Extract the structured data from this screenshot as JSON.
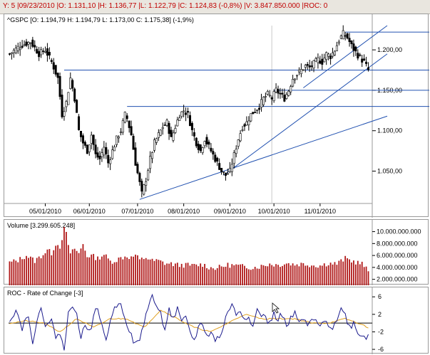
{
  "header": {
    "info_line": "Y: 5 |09/23/2010 |O: 1.131,10 |H: 1.136,77 |L: 1.122,79 |C: 1.124,83 (-0,8%) |V: 3.847.850.000 |ROC: 0"
  },
  "chart_data": [
    {
      "type": "candlestick",
      "name": "price",
      "title": "^GSPC [O: 1.194,79  H: 1.194,79  L: 1.173,00  C: 1.175,38] (-1,9%)",
      "ylim": [
        1010,
        1230
      ],
      "y_ticks": [
        1050,
        1100,
        1150,
        1200
      ],
      "y_tick_labels": [
        "1.050,00",
        "1.100,00",
        "1.150,00",
        "1.200,00"
      ],
      "x_tick_labels": [
        "05/01/2010",
        "06/01/2010",
        "07/01/2010",
        "08/01/2010",
        "09/01/2010",
        "10/01/2010",
        "11/01/2010"
      ],
      "x_tick_index": [
        17,
        38,
        61,
        83,
        105,
        126,
        148
      ],
      "n_bars": 172,
      "closes_anchor": [
        [
          0,
          1195
        ],
        [
          5,
          1205
        ],
        [
          10,
          1210
        ],
        [
          14,
          1195
        ],
        [
          17,
          1200
        ],
        [
          20,
          1185
        ],
        [
          23,
          1165
        ],
        [
          25,
          1120
        ],
        [
          27,
          1135
        ],
        [
          29,
          1165
        ],
        [
          31,
          1140
        ],
        [
          33,
          1100
        ],
        [
          35,
          1085
        ],
        [
          37,
          1075
        ],
        [
          39,
          1095
        ],
        [
          41,
          1070
        ],
        [
          43,
          1065
        ],
        [
          45,
          1080
        ],
        [
          47,
          1060
        ],
        [
          49,
          1075
        ],
        [
          51,
          1090
        ],
        [
          53,
          1100
        ],
        [
          55,
          1120
        ],
        [
          56,
          1115
        ],
        [
          58,
          1095
        ],
        [
          60,
          1060
        ],
        [
          62,
          1035
        ],
        [
          63,
          1022
        ],
        [
          65,
          1040
        ],
        [
          67,
          1065
        ],
        [
          69,
          1085
        ],
        [
          71,
          1095
        ],
        [
          73,
          1105
        ],
        [
          75,
          1110
        ],
        [
          77,
          1090
        ],
        [
          79,
          1105
        ],
        [
          81,
          1120
        ],
        [
          83,
          1125
        ],
        [
          85,
          1120
        ],
        [
          87,
          1100
        ],
        [
          89,
          1085
        ],
        [
          91,
          1075
        ],
        [
          93,
          1090
        ],
        [
          95,
          1080
        ],
        [
          97,
          1070
        ],
        [
          99,
          1060
        ],
        [
          101,
          1050
        ],
        [
          103,
          1045
        ],
        [
          105,
          1050
        ],
        [
          107,
          1070
        ],
        [
          109,
          1090
        ],
        [
          111,
          1105
        ],
        [
          113,
          1110
        ],
        [
          115,
          1120
        ],
        [
          117,
          1125
        ],
        [
          119,
          1130
        ],
        [
          121,
          1140
        ],
        [
          123,
          1145
        ],
        [
          125,
          1140
        ],
        [
          127,
          1150
        ],
        [
          129,
          1145
        ],
        [
          131,
          1140
        ],
        [
          133,
          1150
        ],
        [
          135,
          1165
        ],
        [
          137,
          1170
        ],
        [
          139,
          1175
        ],
        [
          141,
          1180
        ],
        [
          143,
          1178
        ],
        [
          145,
          1183
        ],
        [
          147,
          1188
        ],
        [
          149,
          1185
        ],
        [
          151,
          1195
        ],
        [
          153,
          1192
        ],
        [
          155,
          1200
        ],
        [
          157,
          1212
        ],
        [
          159,
          1220
        ],
        [
          161,
          1215
        ],
        [
          163,
          1205
        ],
        [
          165,
          1197
        ],
        [
          167,
          1190
        ],
        [
          169,
          1185
        ],
        [
          171,
          1175
        ]
      ],
      "hlines": [
        1175,
        1150,
        1130,
        1222
      ],
      "trendlines": [
        {
          "x1": 62,
          "y1": 1015,
          "x2": 180,
          "y2": 1118
        },
        {
          "x1": 102,
          "y1": 1045,
          "x2": 180,
          "y2": 1195
        },
        {
          "x1": 140,
          "y1": 1153,
          "x2": 180,
          "y2": 1230
        }
      ]
    },
    {
      "type": "bar",
      "name": "volume",
      "title": "Volume [3.299.605.248]",
      "ylim": [
        1000000000,
        11500000000
      ],
      "y_ticks": [
        2000000000,
        4000000000,
        6000000000,
        8000000000,
        10000000000
      ],
      "y_tick_labels": [
        "2.000.000.000",
        "4.000.000.000",
        "6.000.000.000",
        "8.000.000.000",
        "10.000.000.000"
      ],
      "values_anchor_billion": [
        [
          0,
          4.8
        ],
        [
          4,
          5.2
        ],
        [
          8,
          6.0
        ],
        [
          12,
          5.1
        ],
        [
          16,
          6.2
        ],
        [
          18,
          6.9
        ],
        [
          20,
          6.4
        ],
        [
          22,
          8.0
        ],
        [
          24,
          7.5
        ],
        [
          26,
          10.4
        ],
        [
          27,
          9.6
        ],
        [
          29,
          6.1
        ],
        [
          31,
          7.2
        ],
        [
          33,
          6.3
        ],
        [
          35,
          7.9
        ],
        [
          37,
          5.9
        ],
        [
          39,
          6.0
        ],
        [
          42,
          5.5
        ],
        [
          45,
          6.2
        ],
        [
          48,
          5.0
        ],
        [
          50,
          5.1
        ],
        [
          53,
          5.6
        ],
        [
          56,
          5.9
        ],
        [
          58,
          5.6
        ],
        [
          60,
          6.1
        ],
        [
          62,
          5.2
        ],
        [
          65,
          5.7
        ],
        [
          68,
          5.1
        ],
        [
          71,
          5.1
        ],
        [
          74,
          4.7
        ],
        [
          77,
          4.6
        ],
        [
          80,
          4.4
        ],
        [
          84,
          4.4
        ],
        [
          88,
          4.3
        ],
        [
          92,
          4.5
        ],
        [
          96,
          3.9
        ],
        [
          100,
          4.0
        ],
        [
          104,
          4.4
        ],
        [
          108,
          4.3
        ],
        [
          112,
          4.1
        ],
        [
          116,
          4.0
        ],
        [
          120,
          4.2
        ],
        [
          124,
          4.6
        ],
        [
          128,
          4.4
        ],
        [
          132,
          4.7
        ],
        [
          136,
          4.5
        ],
        [
          140,
          4.6
        ],
        [
          144,
          4.4
        ],
        [
          148,
          4.3
        ],
        [
          152,
          4.7
        ],
        [
          156,
          4.6
        ],
        [
          160,
          5.5
        ],
        [
          164,
          5.0
        ],
        [
          168,
          4.6
        ],
        [
          171,
          3.3
        ]
      ]
    },
    {
      "type": "line",
      "name": "roc",
      "title": "ROC - Rate of Change [-3]",
      "ylim": [
        -6.8,
        7.5
      ],
      "y_ticks": [
        -6,
        -2,
        2,
        6
      ],
      "y_tick_labels": [
        "-6",
        "-2",
        "2",
        "6"
      ],
      "series": [
        {
          "color": "#1a1a8c",
          "anchor": [
            [
              0,
              1
            ],
            [
              3,
              3
            ],
            [
              6,
              -1
            ],
            [
              9,
              2
            ],
            [
              11,
              -4
            ],
            [
              13,
              0
            ],
            [
              15,
              3
            ],
            [
              17,
              0
            ],
            [
              20,
              1
            ],
            [
              22,
              -4
            ],
            [
              24,
              -2
            ],
            [
              26,
              -6
            ],
            [
              28,
              2
            ],
            [
              30,
              4
            ],
            [
              32,
              3
            ],
            [
              34,
              -4
            ],
            [
              36,
              0
            ],
            [
              38,
              -2
            ],
            [
              40,
              1
            ],
            [
              42,
              4
            ],
            [
              44,
              -1
            ],
            [
              46,
              -4
            ],
            [
              48,
              1
            ],
            [
              50,
              3
            ],
            [
              52,
              5
            ],
            [
              54,
              3
            ],
            [
              56,
              0
            ],
            [
              58,
              -3
            ],
            [
              60,
              -5
            ],
            [
              62,
              -4
            ],
            [
              64,
              0
            ],
            [
              66,
              4
            ],
            [
              68,
              6
            ],
            [
              70,
              4
            ],
            [
              72,
              2
            ],
            [
              74,
              -1
            ],
            [
              76,
              3
            ],
            [
              78,
              1
            ],
            [
              80,
              3
            ],
            [
              82,
              0
            ],
            [
              84,
              1
            ],
            [
              86,
              -2
            ],
            [
              88,
              -4
            ],
            [
              90,
              -1
            ],
            [
              92,
              0
            ],
            [
              94,
              -3
            ],
            [
              96,
              -2
            ],
            [
              98,
              -4
            ],
            [
              100,
              -3
            ],
            [
              102,
              -1
            ],
            [
              104,
              3
            ],
            [
              106,
              4
            ],
            [
              108,
              2
            ],
            [
              110,
              3
            ],
            [
              112,
              1
            ],
            [
              114,
              2
            ],
            [
              116,
              -1
            ],
            [
              118,
              3
            ],
            [
              120,
              2
            ],
            [
              122,
              1
            ],
            [
              124,
              0
            ],
            [
              126,
              2
            ],
            [
              128,
              1
            ],
            [
              130,
              2
            ],
            [
              132,
              -1
            ],
            [
              134,
              1
            ],
            [
              136,
              2
            ],
            [
              138,
              0
            ],
            [
              140,
              1
            ],
            [
              142,
              -1
            ],
            [
              144,
              1
            ],
            [
              146,
              0
            ],
            [
              148,
              -1
            ],
            [
              150,
              1
            ],
            [
              152,
              0
            ],
            [
              154,
              -1
            ],
            [
              156,
              1
            ],
            [
              158,
              3
            ],
            [
              160,
              2
            ],
            [
              162,
              -1
            ],
            [
              164,
              0
            ],
            [
              166,
              -2
            ],
            [
              168,
              -3
            ],
            [
              171,
              -3
            ]
          ]
        },
        {
          "color": "#e0a020",
          "anchor": [
            [
              0,
              0
            ],
            [
              8,
              0.5
            ],
            [
              16,
              0
            ],
            [
              24,
              -2
            ],
            [
              32,
              1
            ],
            [
              40,
              -1
            ],
            [
              48,
              1
            ],
            [
              56,
              1
            ],
            [
              64,
              -1
            ],
            [
              72,
              3
            ],
            [
              80,
              1
            ],
            [
              88,
              -1
            ],
            [
              96,
              -2
            ],
            [
              104,
              0
            ],
            [
              112,
              2
            ],
            [
              120,
              1
            ],
            [
              128,
              1
            ],
            [
              136,
              1
            ],
            [
              144,
              0
            ],
            [
              152,
              0
            ],
            [
              160,
              1
            ],
            [
              166,
              0
            ],
            [
              171,
              -1
            ]
          ]
        }
      ]
    }
  ]
}
